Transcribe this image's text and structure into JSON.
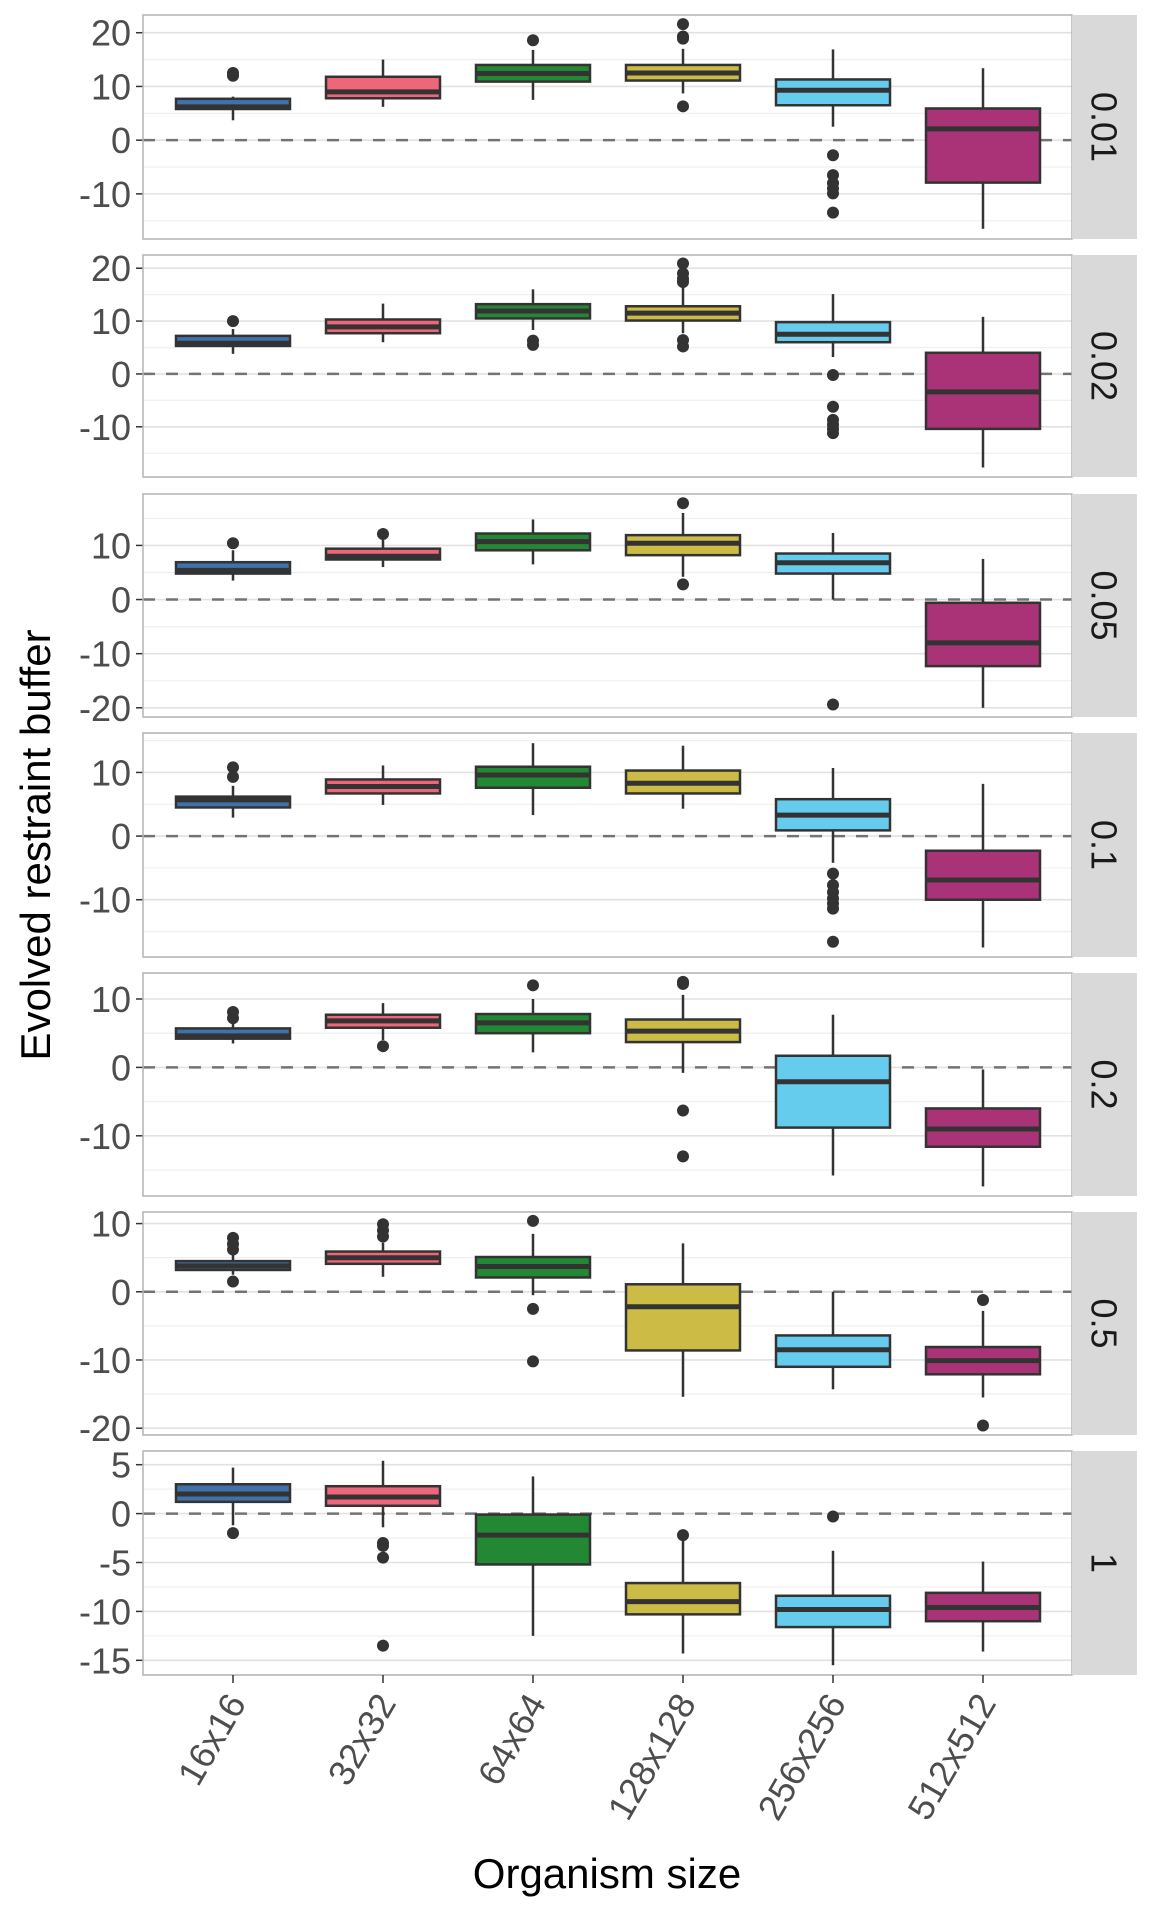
{
  "chart_data": {
    "type": "boxplot",
    "title": "",
    "xlabel": "Organism size",
    "ylabel": "Evolved restraint buffer",
    "categories": [
      "16x16",
      "32x32",
      "64x64",
      "128x128",
      "256x256",
      "512x512"
    ],
    "colors": [
      "#3f72aa",
      "#ee667a",
      "#228833",
      "#ccbb44",
      "#66ccee",
      "#aa3377"
    ],
    "reference_line": {
      "y": 0,
      "style": "dashed",
      "color": "#737373"
    },
    "grid": true,
    "facet_variable_values": [
      "0.01",
      "0.02",
      "0.05",
      "0.1",
      "0.2",
      "0.5",
      "1"
    ],
    "panels": [
      {
        "strip": "0.01",
        "ylim": [
          -18.4,
          23.3
        ],
        "yticks": [
          20,
          10,
          0,
          -10
        ],
        "ytick_labels": [
          "20",
          "10",
          "0",
          "-10"
        ],
        "boxes": [
          {
            "category": "16x16",
            "q1": 5.8,
            "median": 6.2,
            "q3": 7.7,
            "whisker_low": 3.7,
            "whisker_high": 8.1,
            "outliers": [
              12.0,
              12.5
            ]
          },
          {
            "category": "32x32",
            "q1": 7.8,
            "median": 9.0,
            "q3": 11.8,
            "whisker_low": 6.2,
            "whisker_high": 15.0,
            "outliers": []
          },
          {
            "category": "64x64",
            "q1": 10.9,
            "median": 12.4,
            "q3": 14.0,
            "whisker_low": 7.5,
            "whisker_high": 16.8,
            "outliers": [
              18.6
            ]
          },
          {
            "category": "128x128",
            "q1": 11.1,
            "median": 12.5,
            "q3": 14.0,
            "whisker_low": 8.7,
            "whisker_high": 17.0,
            "outliers": [
              21.6,
              19.3,
              18.9,
              6.3
            ]
          },
          {
            "category": "256x256",
            "q1": 6.5,
            "median": 9.3,
            "q3": 11.3,
            "whisker_low": 2.5,
            "whisker_high": 16.9,
            "outliers": [
              -2.8,
              -6.5,
              -8.0,
              -9.0,
              -9.9,
              -13.5
            ]
          },
          {
            "category": "512x512",
            "q1": -7.9,
            "median": 2.1,
            "q3": 5.9,
            "whisker_low": -16.5,
            "whisker_high": 13.4,
            "outliers": []
          }
        ]
      },
      {
        "strip": "0.02",
        "ylim": [
          -19.5,
          22.5
        ],
        "yticks": [
          20,
          10,
          0,
          -10
        ],
        "ytick_labels": [
          "20",
          "10",
          "0",
          "-10"
        ],
        "boxes": [
          {
            "category": "16x16",
            "q1": 5.3,
            "median": 5.8,
            "q3": 7.2,
            "whisker_low": 3.8,
            "whisker_high": 8.5,
            "outliers": [
              10.0
            ]
          },
          {
            "category": "32x32",
            "q1": 7.7,
            "median": 8.9,
            "q3": 10.3,
            "whisker_low": 6.0,
            "whisker_high": 13.3,
            "outliers": []
          },
          {
            "category": "64x64",
            "q1": 10.5,
            "median": 11.9,
            "q3": 13.2,
            "whisker_low": 8.3,
            "whisker_high": 16.0,
            "outliers": [
              6.3,
              5.5
            ]
          },
          {
            "category": "128x128",
            "q1": 10.1,
            "median": 11.5,
            "q3": 12.8,
            "whisker_low": 7.7,
            "whisker_high": 17.1,
            "outliers": [
              20.9,
              19.0,
              18.0,
              17.4,
              6.4,
              5.2
            ]
          },
          {
            "category": "256x256",
            "q1": 6.0,
            "median": 7.5,
            "q3": 9.8,
            "whisker_low": 3.2,
            "whisker_high": 15.1,
            "outliers": [
              -0.2,
              -6.2,
              -8.7,
              -9.6,
              -10.4,
              -11.2
            ]
          },
          {
            "category": "512x512",
            "q1": -10.4,
            "median": -3.4,
            "q3": 4.0,
            "whisker_low": -17.7,
            "whisker_high": 10.8,
            "outliers": []
          }
        ]
      },
      {
        "strip": "0.05",
        "ylim": [
          -21.7,
          19.5
        ],
        "yticks": [
          10,
          0,
          -10,
          -20
        ],
        "ytick_labels": [
          "10",
          "0",
          "-10",
          "-20"
        ],
        "boxes": [
          {
            "category": "16x16",
            "q1": 4.8,
            "median": 5.4,
            "q3": 6.9,
            "whisker_low": 3.5,
            "whisker_high": 9.1,
            "outliers": [
              10.4
            ]
          },
          {
            "category": "32x32",
            "q1": 7.4,
            "median": 8.0,
            "q3": 9.4,
            "whisker_low": 6.0,
            "whisker_high": 11.0,
            "outliers": [
              12.1
            ]
          },
          {
            "category": "64x64",
            "q1": 9.1,
            "median": 10.7,
            "q3": 12.2,
            "whisker_low": 6.5,
            "whisker_high": 14.8,
            "outliers": []
          },
          {
            "category": "128x128",
            "q1": 8.2,
            "median": 10.4,
            "q3": 11.9,
            "whisker_low": 4.2,
            "whisker_high": 16.0,
            "outliers": [
              17.8,
              2.8
            ]
          },
          {
            "category": "256x256",
            "q1": 4.8,
            "median": 6.8,
            "q3": 8.5,
            "whisker_low": 0.0,
            "whisker_high": 12.3,
            "outliers": [
              -19.4
            ]
          },
          {
            "category": "512x512",
            "q1": -12.3,
            "median": -8.0,
            "q3": -0.6,
            "whisker_low": -20.0,
            "whisker_high": 7.5,
            "outliers": []
          }
        ]
      },
      {
        "strip": "0.1",
        "ylim": [
          -19.0,
          16.2
        ],
        "yticks": [
          10,
          0,
          -10
        ],
        "ytick_labels": [
          "10",
          "0",
          "-10"
        ],
        "boxes": [
          {
            "category": "16x16",
            "q1": 4.5,
            "median": 5.7,
            "q3": 6.2,
            "whisker_low": 2.9,
            "whisker_high": 7.9,
            "outliers": [
              10.8,
              9.3
            ]
          },
          {
            "category": "32x32",
            "q1": 6.7,
            "median": 7.8,
            "q3": 8.9,
            "whisker_low": 4.9,
            "whisker_high": 11.1,
            "outliers": []
          },
          {
            "category": "64x64",
            "q1": 7.6,
            "median": 9.6,
            "q3": 10.9,
            "whisker_low": 3.3,
            "whisker_high": 14.6,
            "outliers": []
          },
          {
            "category": "128x128",
            "q1": 6.7,
            "median": 8.3,
            "q3": 10.3,
            "whisker_low": 4.3,
            "whisker_high": 14.2,
            "outliers": []
          },
          {
            "category": "256x256",
            "q1": 0.9,
            "median": 3.3,
            "q3": 5.8,
            "whisker_low": -4.2,
            "whisker_high": 10.7,
            "outliers": [
              -5.9,
              -7.7,
              -8.8,
              -9.8,
              -10.6,
              -11.4,
              -16.6
            ]
          },
          {
            "category": "512x512",
            "q1": -10.0,
            "median": -6.9,
            "q3": -2.3,
            "whisker_low": -17.5,
            "whisker_high": 8.2,
            "outliers": []
          }
        ]
      },
      {
        "strip": "0.2",
        "ylim": [
          -18.8,
          13.8
        ],
        "yticks": [
          10,
          0,
          -10
        ],
        "ytick_labels": [
          "10",
          "0",
          "-10"
        ],
        "boxes": [
          {
            "category": "16x16",
            "q1": 4.2,
            "median": 4.6,
            "q3": 5.7,
            "whisker_low": 3.5,
            "whisker_high": 6.4,
            "outliers": [
              7.2,
              8.1
            ]
          },
          {
            "category": "32x32",
            "q1": 5.8,
            "median": 6.8,
            "q3": 7.7,
            "whisker_low": 4.0,
            "whisker_high": 9.4,
            "outliers": [
              3.1
            ]
          },
          {
            "category": "64x64",
            "q1": 5.0,
            "median": 6.5,
            "q3": 7.8,
            "whisker_low": 2.2,
            "whisker_high": 10.0,
            "outliers": [
              12.0
            ]
          },
          {
            "category": "128x128",
            "q1": 3.7,
            "median": 5.3,
            "q3": 7.0,
            "whisker_low": -0.8,
            "whisker_high": 10.6,
            "outliers": [
              12.5,
              12.2,
              -6.3,
              -13.0
            ]
          },
          {
            "category": "256x256",
            "q1": -8.8,
            "median": -2.1,
            "q3": 1.7,
            "whisker_low": -15.8,
            "whisker_high": 7.7,
            "outliers": []
          },
          {
            "category": "512x512",
            "q1": -11.6,
            "median": -9.0,
            "q3": -6.0,
            "whisker_low": -17.4,
            "whisker_high": -0.3,
            "outliers": []
          }
        ]
      },
      {
        "strip": "0.5",
        "ylim": [
          -21.0,
          11.7
        ],
        "yticks": [
          10,
          0,
          -10,
          -20
        ],
        "ytick_labels": [
          "10",
          "0",
          "-10",
          "-20"
        ],
        "boxes": [
          {
            "category": "16x16",
            "q1": 3.2,
            "median": 3.8,
            "q3": 4.5,
            "whisker_low": 2.5,
            "whisker_high": 5.4,
            "outliers": [
              7.9,
              7.0,
              6.2,
              1.5
            ]
          },
          {
            "category": "32x32",
            "q1": 4.1,
            "median": 5.0,
            "q3": 5.9,
            "whisker_low": 2.2,
            "whisker_high": 7.2,
            "outliers": [
              9.9,
              9.0,
              8.1
            ]
          },
          {
            "category": "64x64",
            "q1": 2.1,
            "median": 3.7,
            "q3": 5.1,
            "whisker_low": -0.5,
            "whisker_high": 8.5,
            "outliers": [
              10.4,
              -2.5,
              -10.2
            ]
          },
          {
            "category": "128x128",
            "q1": -8.6,
            "median": -2.2,
            "q3": 1.1,
            "whisker_low": -15.4,
            "whisker_high": 7.1,
            "outliers": []
          },
          {
            "category": "256x256",
            "q1": -11.0,
            "median": -8.5,
            "q3": -6.4,
            "whisker_low": -14.3,
            "whisker_high": 0.0,
            "outliers": []
          },
          {
            "category": "512x512",
            "q1": -12.1,
            "median": -10.1,
            "q3": -8.1,
            "whisker_low": -15.5,
            "whisker_high": -2.8,
            "outliers": [
              -1.2,
              -19.6
            ]
          }
        ]
      },
      {
        "strip": "1",
        "ylim": [
          -16.5,
          6.4
        ],
        "yticks": [
          5,
          0,
          -5,
          -10,
          -15
        ],
        "ytick_labels": [
          "5",
          "0",
          "-5",
          "-10",
          "-15"
        ],
        "boxes": [
          {
            "category": "16x16",
            "q1": 1.2,
            "median": 2.0,
            "q3": 3.0,
            "whisker_low": -1.2,
            "whisker_high": 4.7,
            "outliers": [
              -2.0
            ]
          },
          {
            "category": "32x32",
            "q1": 0.8,
            "median": 1.7,
            "q3": 2.8,
            "whisker_low": -1.4,
            "whisker_high": 5.4,
            "outliers": [
              -3.0,
              -3.3,
              -4.5,
              -13.5
            ]
          },
          {
            "category": "64x64",
            "q1": -5.2,
            "median": -2.2,
            "q3": -0.1,
            "whisker_low": -12.5,
            "whisker_high": 3.8,
            "outliers": []
          },
          {
            "category": "128x128",
            "q1": -10.3,
            "median": -9.0,
            "q3": -7.1,
            "whisker_low": -14.3,
            "whisker_high": -2.7,
            "outliers": [
              -2.2
            ]
          },
          {
            "category": "256x256",
            "q1": -11.6,
            "median": -9.8,
            "q3": -8.4,
            "whisker_low": -15.5,
            "whisker_high": -3.8,
            "outliers": [
              -0.3
            ]
          },
          {
            "category": "512x512",
            "q1": -11.0,
            "median": -9.6,
            "q3": -8.1,
            "whisker_low": -14.1,
            "whisker_high": -4.9,
            "outliers": []
          }
        ]
      }
    ]
  }
}
